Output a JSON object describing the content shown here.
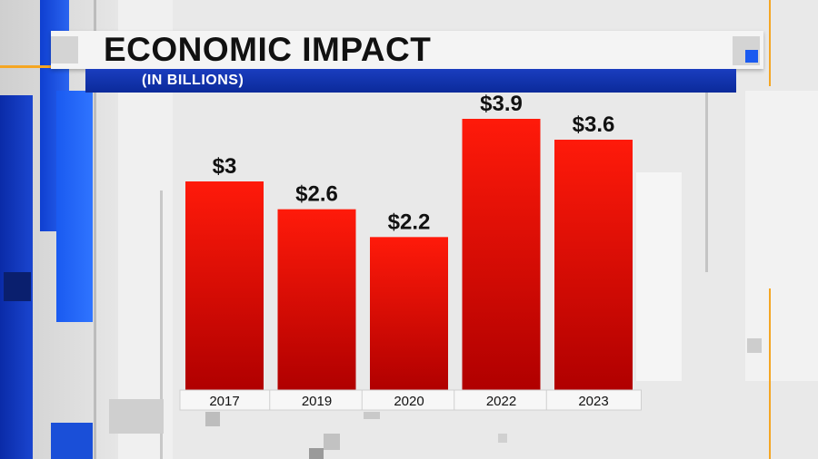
{
  "header": {
    "title": "ECONOMIC IMPACT",
    "subtitle": "(IN BILLIONS)"
  },
  "colors": {
    "bar_top": "#ff1a0a",
    "bar_bottom": "#b00000",
    "accent_blue": "#1450e0",
    "accent_orange": "#f5a623"
  },
  "chart_data": {
    "type": "bar",
    "title": "ECONOMIC IMPACT",
    "subtitle": "(IN BILLIONS)",
    "categories": [
      "2017",
      "2019",
      "2020",
      "2022",
      "2023"
    ],
    "values": [
      3,
      2.6,
      2.2,
      3.9,
      3.6
    ],
    "data_labels": [
      "$3",
      "$2.6",
      "$2.2",
      "$3.9",
      "$3.6"
    ],
    "ylim": [
      0,
      4.5
    ],
    "grid": false,
    "legend": "none"
  }
}
